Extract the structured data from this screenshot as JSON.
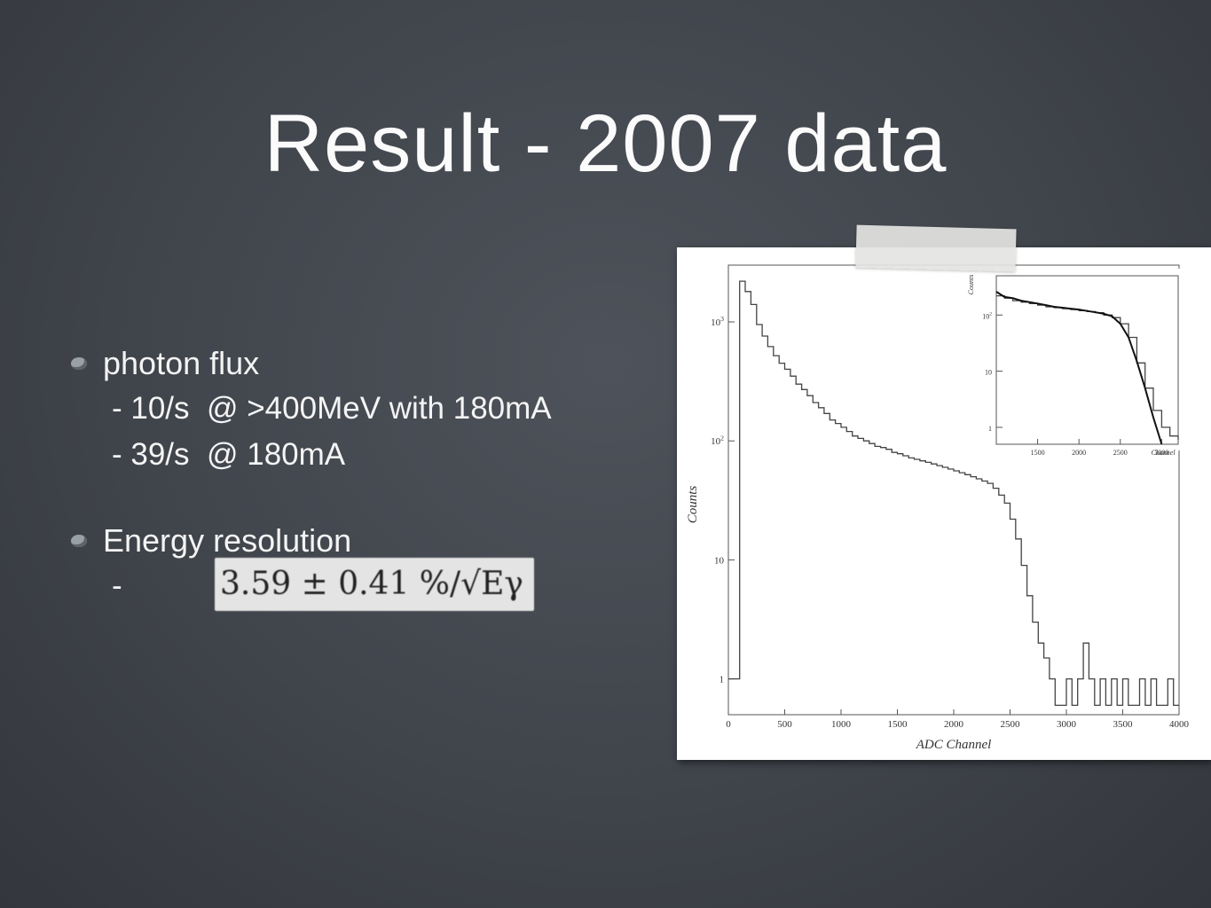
{
  "slide": {
    "title": "Result - 2007 data",
    "bullets": [
      {
        "label": "photon flux",
        "lines": [
          "- 10/s  @ >400MeV with 180mA",
          "- 39/s  @ 180mA"
        ]
      },
      {
        "label": "Energy resolution",
        "lines": [
          "-"
        ],
        "formula": "3.59 ± 0.41  %/√Eγ"
      }
    ]
  },
  "chart_data": [
    {
      "type": "line",
      "xlabel": "ADC Channel",
      "ylabel": "Counts",
      "x_ticks": [
        "0",
        "500",
        "1000",
        "1500",
        "2000",
        "2500",
        "3000",
        "3500",
        "4000"
      ],
      "y_ticks": [
        "1",
        "10",
        "10^2",
        "10^3"
      ],
      "xlim": [
        0,
        4000
      ],
      "ylim": [
        0.5,
        3000
      ],
      "y_scale": "log",
      "series": [
        {
          "x": [
            0,
            100,
            150,
            200,
            250,
            300,
            350,
            400,
            450,
            500,
            550,
            600,
            650,
            700,
            750,
            800,
            850,
            900,
            950,
            1000,
            1050,
            1100,
            1150,
            1200,
            1250,
            1300,
            1350,
            1400,
            1450,
            1500,
            1550,
            1600,
            1650,
            1700,
            1750,
            1800,
            1850,
            1900,
            1950,
            2000,
            2050,
            2100,
            2150,
            2200,
            2250,
            2300,
            2350,
            2400,
            2450,
            2500,
            2550,
            2600,
            2650,
            2700,
            2750,
            2800,
            2850,
            2900,
            2950,
            3000,
            3050,
            3100,
            3150,
            3200,
            3250,
            3300,
            3350,
            3400,
            3450,
            3500,
            3550,
            3600,
            3650,
            3700,
            3750,
            3800,
            3850,
            3900,
            3950,
            4000
          ],
          "y": [
            1,
            2200,
            1800,
            1400,
            950,
            760,
            620,
            520,
            450,
            400,
            350,
            300,
            270,
            240,
            210,
            190,
            170,
            150,
            140,
            130,
            120,
            110,
            105,
            100,
            95,
            90,
            88,
            85,
            80,
            78,
            75,
            72,
            70,
            68,
            66,
            64,
            62,
            60,
            58,
            56,
            54,
            52,
            50,
            48,
            46,
            44,
            40,
            35,
            30,
            22,
            15,
            9,
            5,
            3,
            2,
            1.5,
            1,
            0.6,
            0.6,
            1,
            0.6,
            1,
            2,
            1,
            0.6,
            1,
            0.6,
            1,
            0.6,
            1,
            0.6,
            0.6,
            1,
            0.6,
            1,
            0.6,
            0.6,
            1,
            0.6,
            0.6
          ]
        }
      ]
    },
    {
      "type": "line",
      "ylabel": "Counts",
      "xlabel": "Channel",
      "x_ticks": [
        "1500",
        "2000",
        "2500",
        "3000"
      ],
      "y_ticks": [
        "1",
        "10",
        "10^2"
      ],
      "xlim": [
        1000,
        3200
      ],
      "ylim": [
        0.5,
        500
      ],
      "y_scale": "log",
      "series": [
        {
          "x": [
            1000,
            1100,
            1200,
            1300,
            1400,
            1500,
            1600,
            1700,
            1800,
            1900,
            2000,
            2100,
            2200,
            2300,
            2400,
            2500,
            2600,
            2700,
            2800,
            2900,
            3000,
            3100,
            3200
          ],
          "y": [
            220,
            200,
            180,
            170,
            160,
            150,
            140,
            135,
            130,
            125,
            120,
            115,
            110,
            100,
            90,
            70,
            40,
            14,
            5,
            2,
            1,
            0.7,
            0.6
          ]
        },
        {
          "x": [
            1000,
            1100,
            1200,
            1300,
            1400,
            1500,
            1600,
            1700,
            1800,
            1900,
            2000,
            2100,
            2200,
            2300,
            2400,
            2500,
            2600,
            2700,
            2800,
            2900,
            3000
          ],
          "y": [
            260,
            210,
            200,
            180,
            170,
            160,
            150,
            140,
            135,
            130,
            125,
            118,
            112,
            105,
            95,
            70,
            40,
            15,
            5,
            1.5,
            0.5
          ]
        }
      ]
    }
  ]
}
